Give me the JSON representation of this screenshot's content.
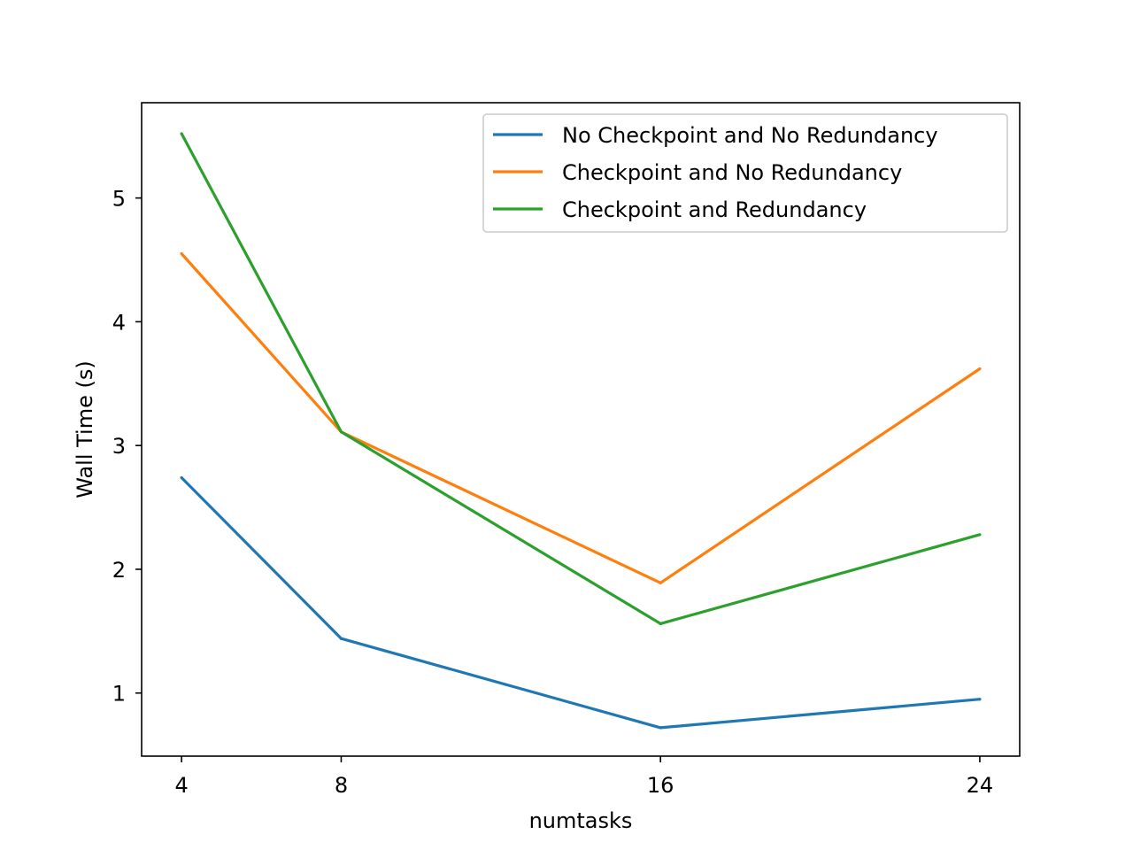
{
  "chart_data": {
    "type": "line",
    "title": "",
    "xlabel": "numtasks",
    "ylabel": "Wall Time (s)",
    "x": [
      4,
      8,
      16,
      24
    ],
    "xticks": [
      4,
      8,
      16,
      24
    ],
    "xtick_labels": [
      "4",
      "8",
      "16",
      "24"
    ],
    "yticks": [
      1,
      2,
      3,
      4,
      5
    ],
    "ytick_labels": [
      "1",
      "2",
      "3",
      "4",
      "5"
    ],
    "xlim": [
      3,
      25
    ],
    "ylim": [
      0.49,
      5.77
    ],
    "grid": false,
    "legend_position": "top-right",
    "series": [
      {
        "name": "No Checkpoint and No Redundancy",
        "color": "#1f77b4",
        "values": [
          2.74,
          1.44,
          0.72,
          0.95
        ]
      },
      {
        "name": "Checkpoint and No Redundancy",
        "color": "#ff7f0e",
        "values": [
          4.55,
          3.11,
          1.89,
          3.62
        ]
      },
      {
        "name": "Checkpoint and Redundancy",
        "color": "#2ca02c",
        "values": [
          5.52,
          3.11,
          1.56,
          2.28
        ]
      }
    ]
  }
}
